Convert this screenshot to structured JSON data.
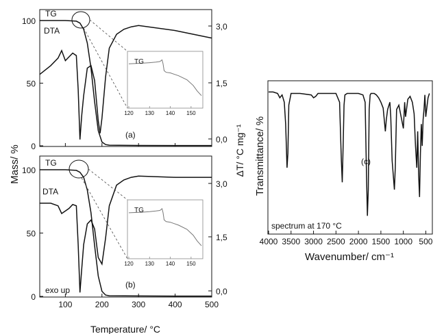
{
  "chart_data": [
    {
      "id": "panel-a",
      "type": "line",
      "panel_label": "(a)",
      "xlim": [
        30,
        500
      ],
      "ylim_left": [
        0,
        100
      ],
      "ylim_right_ticks": [
        "0,0",
        "1,5",
        "3,0"
      ],
      "y_left_ticks": [
        "0",
        "50",
        "100"
      ],
      "labels": {
        "tg": "TG",
        "dta": "DTA"
      },
      "series": [
        {
          "name": "TG",
          "x": [
            30,
            100,
            130,
            140,
            150,
            160,
            170,
            180,
            190,
            200,
            210,
            220,
            300,
            400,
            500
          ],
          "y": [
            100,
            100,
            99.5,
            98,
            93,
            82,
            62,
            35,
            12,
            3,
            1,
            0.5,
            0.3,
            0.2,
            0.2
          ]
        },
        {
          "name": "DTA",
          "x": [
            30,
            60,
            80,
            90,
            100,
            110,
            120,
            130,
            135,
            140,
            145,
            150,
            160,
            170,
            180,
            190,
            195,
            200,
            210,
            220,
            240,
            260,
            280,
            300,
            400,
            500
          ],
          "y": [
            57,
            64,
            70,
            76,
            68,
            71,
            74,
            72,
            45,
            5,
            25,
            40,
            62,
            64,
            52,
            20,
            10,
            22,
            55,
            78,
            89,
            93,
            95,
            96,
            92,
            86
          ]
        }
      ],
      "inset": {
        "label": "TG",
        "x_ticks": [
          "120",
          "130",
          "140",
          "150"
        ],
        "xlim": [
          120,
          155
        ],
        "curve_x": [
          120,
          126,
          130,
          133,
          135,
          136,
          136.5,
          137,
          138,
          140,
          144,
          148,
          151,
          153,
          155
        ],
        "curve_y": [
          0.78,
          0.79,
          0.8,
          0.81,
          0.82,
          0.85,
          0.78,
          0.66,
          0.63,
          0.62,
          0.57,
          0.5,
          0.4,
          0.3,
          0.22
        ]
      }
    },
    {
      "id": "panel-b",
      "type": "line",
      "panel_label": "(b)",
      "xlim": [
        30,
        500
      ],
      "ylim_left": [
        0,
        100
      ],
      "ylim_right_ticks": [
        "0,0",
        "1,5",
        "3,0"
      ],
      "y_left_ticks": [
        "0",
        "50",
        "100"
      ],
      "x_ticks": [
        "100",
        "200",
        "300",
        "400",
        "500"
      ],
      "xlabel": "Temperature/ °C",
      "ylabel_left": "Mass/ %",
      "ylabel_right": "ΔT/ °C mg⁻¹",
      "labels": {
        "tg": "TG",
        "dta": "DTA",
        "exo": "exo up"
      },
      "series": [
        {
          "name": "TG",
          "x": [
            30,
            100,
            130,
            140,
            150,
            160,
            170,
            180,
            190,
            200,
            210,
            220,
            300,
            400,
            500
          ],
          "y": [
            100,
            100,
            99.5,
            98,
            94,
            84,
            66,
            40,
            16,
            4,
            1,
            0.5,
            0.3,
            0.2,
            0.2
          ]
        },
        {
          "name": "DTA",
          "x": [
            30,
            60,
            80,
            90,
            100,
            110,
            120,
            130,
            135,
            140,
            145,
            150,
            160,
            170,
            180,
            190,
            200,
            210,
            220,
            240,
            260,
            280,
            300,
            400,
            500
          ],
          "y": [
            72,
            72,
            70,
            64,
            66,
            68,
            71,
            70,
            40,
            3,
            22,
            40,
            56,
            59,
            52,
            30,
            25,
            45,
            70,
            86,
            90,
            92,
            93,
            92,
            92
          ]
        }
      ],
      "inset": {
        "label": "TG",
        "x_ticks": [
          "120",
          "130",
          "140",
          "150"
        ],
        "xlim": [
          120,
          155
        ],
        "curve_x": [
          120,
          126,
          130,
          133,
          135,
          136,
          136.5,
          137,
          138,
          140,
          144,
          148,
          151,
          153,
          155
        ],
        "curve_y": [
          0.78,
          0.79,
          0.8,
          0.81,
          0.82,
          0.85,
          0.78,
          0.66,
          0.63,
          0.62,
          0.57,
          0.5,
          0.4,
          0.3,
          0.22
        ]
      }
    },
    {
      "id": "panel-c",
      "type": "line",
      "panel_label": "(c)",
      "xlim": [
        4000,
        400
      ],
      "x_ticks": [
        "4000",
        "3500",
        "3000",
        "2500",
        "2000",
        "1500",
        "1000",
        "500"
      ],
      "xlabel": "Wavenumber/ cm⁻¹",
      "ylabel": "Transmittance/ %",
      "annotation": "spectrum at 170 °C",
      "series": [
        {
          "name": "IR",
          "x": [
            4000,
            3900,
            3800,
            3750,
            3700,
            3650,
            3620,
            3590,
            3570,
            3550,
            3500,
            3300,
            3050,
            3000,
            2950,
            2900,
            2700,
            2500,
            2420,
            2380,
            2360,
            2340,
            2320,
            2300,
            2250,
            2100,
            2000,
            1900,
            1850,
            1820,
            1800,
            1780,
            1760,
            1740,
            1720,
            1700,
            1650,
            1600,
            1550,
            1500,
            1450,
            1400,
            1380,
            1350,
            1300,
            1280,
            1250,
            1200,
            1180,
            1150,
            1100,
            1050,
            1000,
            970,
            950,
            900,
            850,
            800,
            760,
            730,
            700,
            680,
            660,
            640,
            620,
            600,
            580,
            560,
            540,
            520,
            500,
            450,
            420
          ],
          "y": [
            97,
            97,
            96,
            93,
            95,
            90,
            75,
            45,
            55,
            88,
            96,
            96,
            95,
            93,
            94,
            96,
            96,
            96,
            90,
            50,
            35,
            60,
            88,
            95,
            96,
            96,
            96,
            95,
            90,
            40,
            12,
            30,
            85,
            95,
            96,
            96,
            96,
            95,
            93,
            90,
            86,
            70,
            78,
            85,
            90,
            80,
            50,
            30,
            45,
            85,
            88,
            80,
            72,
            90,
            80,
            92,
            94,
            90,
            82,
            60,
            45,
            70,
            40,
            25,
            55,
            75,
            60,
            78,
            85,
            95,
            80,
            93,
            96
          ]
        }
      ]
    }
  ]
}
